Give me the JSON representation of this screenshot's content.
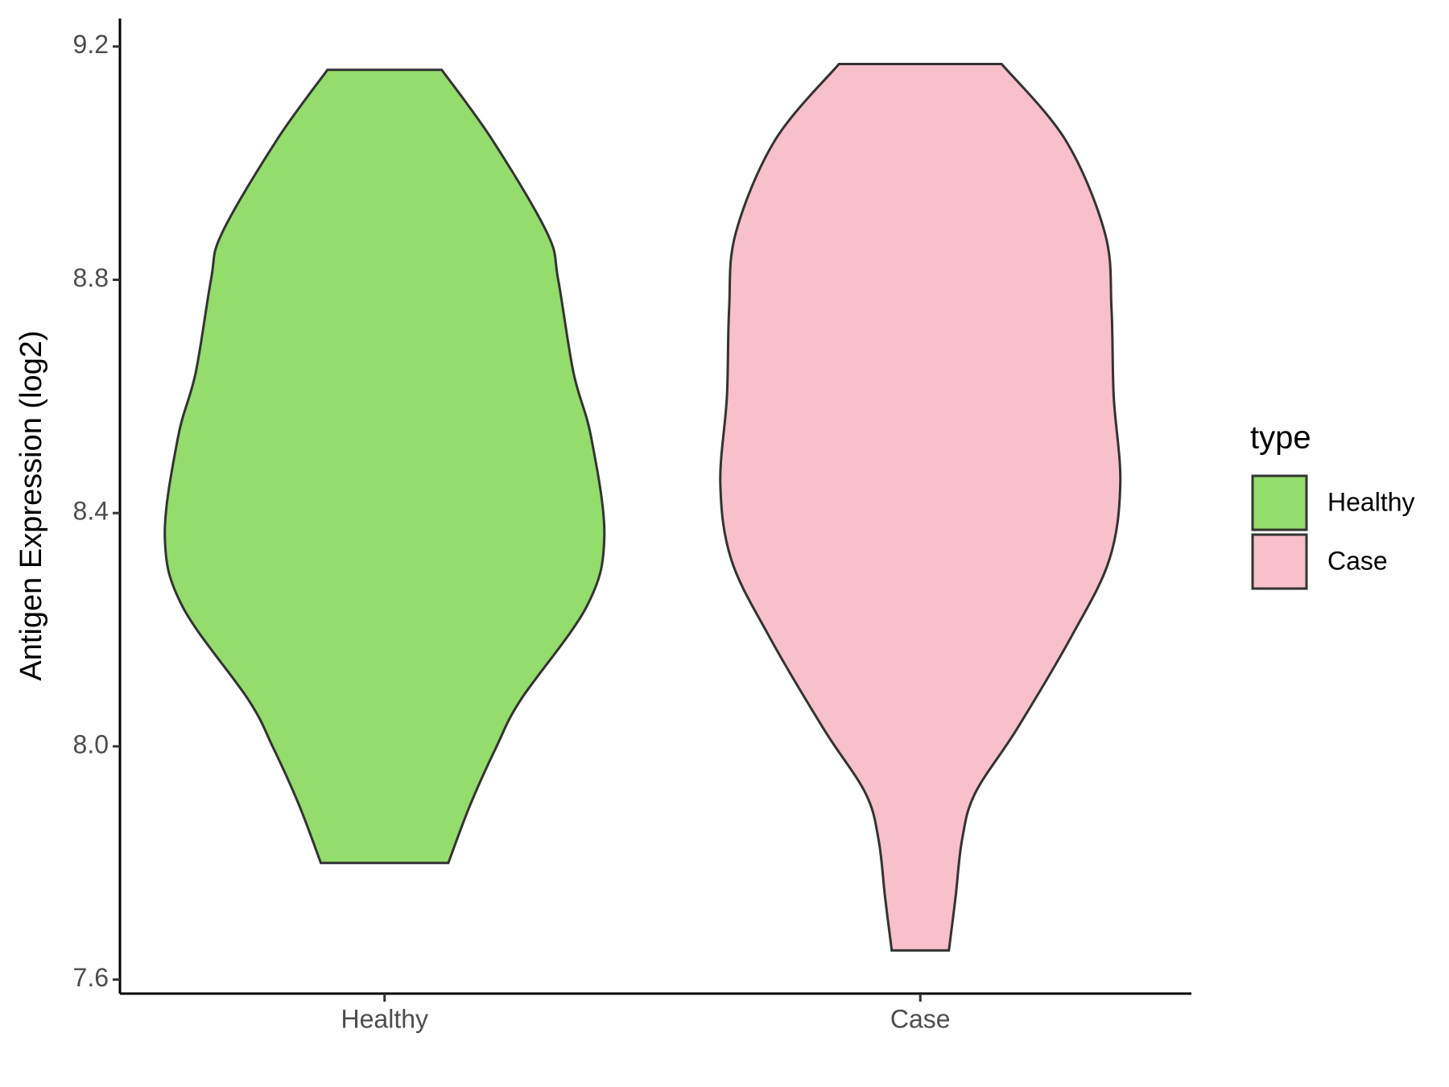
{
  "chart_data": {
    "type": "violin",
    "ylabel": "Antigen Expression (log2)",
    "categories": [
      "Healthy",
      "Case"
    ],
    "legend_title": "type",
    "legend_position": "right",
    "ylim": [
      7.576,
      9.248
    ],
    "yticks": [
      {
        "value": 7.6,
        "label": "7.6"
      },
      {
        "value": 8.0,
        "label": "8.0"
      },
      {
        "value": 8.4,
        "label": "8.4"
      },
      {
        "value": 8.8,
        "label": "8.8"
      },
      {
        "value": 9.2,
        "label": "9.2"
      }
    ],
    "grid": false,
    "series": [
      {
        "name": "Healthy",
        "color": "#94dc6b",
        "y": [
          9.16,
          9.04,
          8.88,
          8.8,
          8.64,
          8.53,
          8.36,
          8.24,
          8.08,
          8.0,
          7.9,
          7.8
        ],
        "density": [
          0.26,
          0.49,
          0.74,
          0.79,
          0.86,
          0.94,
          1.0,
          0.92,
          0.62,
          0.51,
          0.39,
          0.29
        ]
      },
      {
        "name": "Case",
        "color": "#f7c0cb",
        "y": [
          9.17,
          9.04,
          8.88,
          8.75,
          8.6,
          8.45,
          8.32,
          8.19,
          8.03,
          7.92,
          7.84,
          7.74,
          7.65
        ],
        "density": [
          0.37,
          0.66,
          0.84,
          0.87,
          0.88,
          0.91,
          0.86,
          0.69,
          0.44,
          0.25,
          0.19,
          0.16,
          0.13
        ]
      }
    ]
  }
}
